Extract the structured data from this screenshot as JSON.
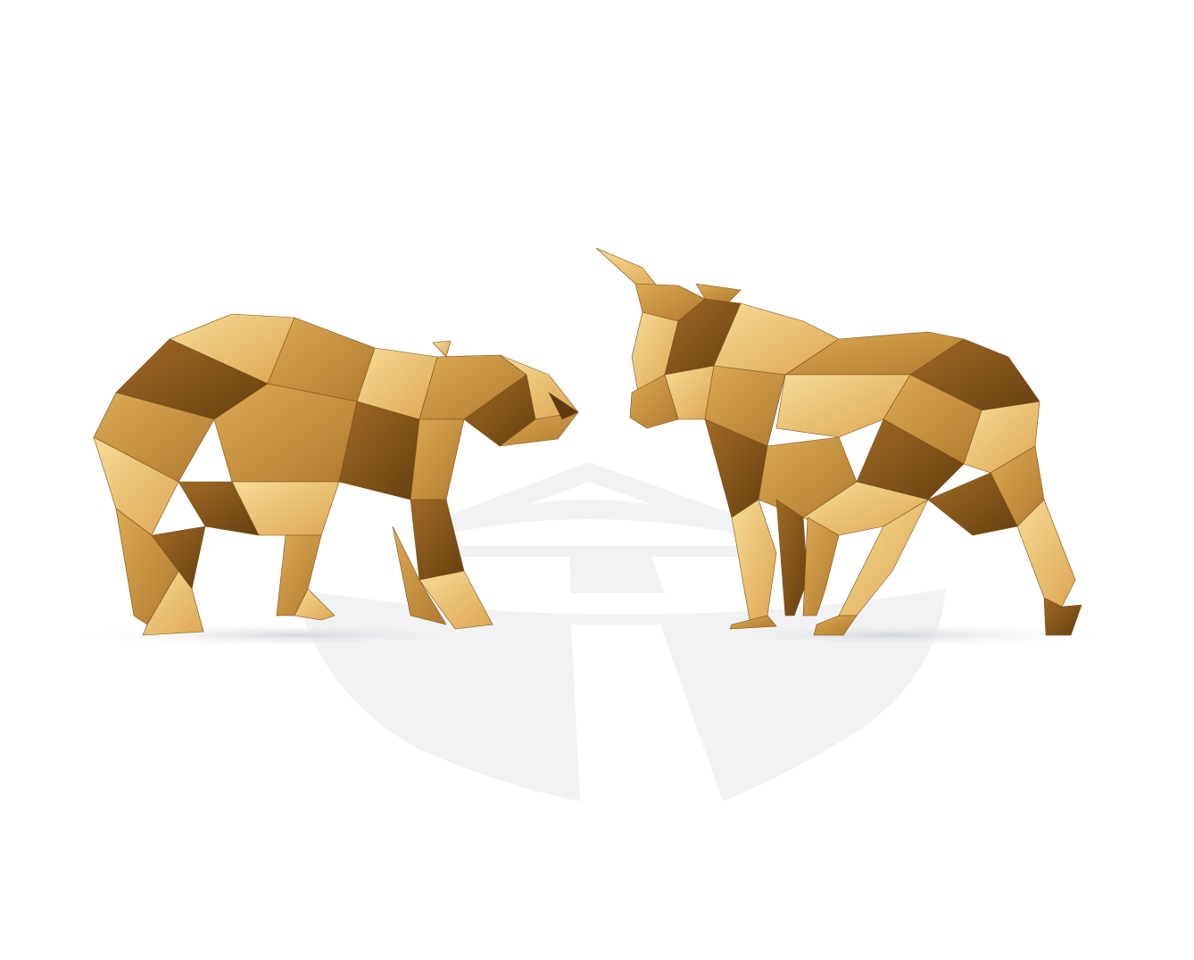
{
  "scene": {
    "subject": "bear-and-bull",
    "background_color": "#ffffff",
    "watermark_color": "#f1f2f4",
    "shadow_color": "#d9dbde",
    "gold_palette": {
      "light": "#f4cf7e",
      "mid": "#d9a24a",
      "dark": "#8a5a1c",
      "deep": "#5e3a10"
    }
  }
}
